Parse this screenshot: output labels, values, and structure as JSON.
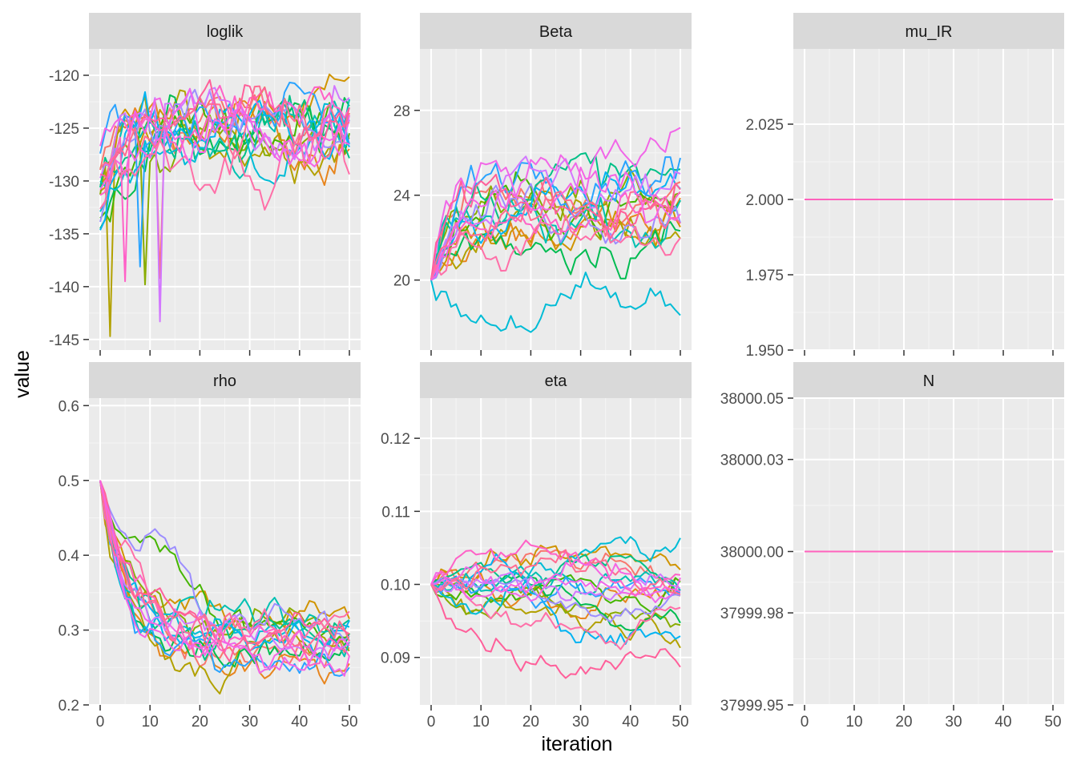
{
  "chart_data": {
    "type": "line",
    "xlabel": "iteration",
    "ylabel": "value",
    "x_ticks": [
      "0",
      "10",
      "20",
      "30",
      "40",
      "50"
    ],
    "xlim": [
      0,
      50
    ],
    "grid": true,
    "facet_scales": "free_y",
    "n_chains": 20,
    "palette": [
      "#F8766D",
      "#E7851E",
      "#D09400",
      "#B2A100",
      "#89AC00",
      "#45B500",
      "#00BC51",
      "#00C087",
      "#00C0B2",
      "#00BCD6",
      "#00B3F2",
      "#29A3FF",
      "#9C8DFF",
      "#D277FF",
      "#F166E8",
      "#FF61C7",
      "#FF6C91",
      "#FF5F9A",
      "#FF6FA8",
      "#F564E3"
    ],
    "facets": [
      {
        "id": "loglik",
        "label": "loglik",
        "ylim": [
          -146,
          -117.5
        ],
        "y_ticks": [
          -145,
          -140,
          -135,
          -130,
          -125,
          -120
        ],
        "y_tick_labels": [
          "-145",
          "-140",
          "-135",
          "-130",
          "-125",
          "-120"
        ],
        "start": -131,
        "start_spread": 4,
        "mean": -125,
        "spread": 2.3,
        "jitter": 2.2,
        "lo": -145,
        "hi": -118.5,
        "dips": [
          [
            3,
            2,
            -144.7
          ],
          [
            13,
            12,
            -143.3
          ],
          [
            4,
            9,
            -139.8
          ],
          [
            15,
            5,
            -139.5
          ],
          [
            11,
            8,
            -138.1
          ],
          [
            0,
            12,
            -139.2
          ]
        ]
      },
      {
        "id": "Beta",
        "label": "Beta",
        "ylim": [
          16.7,
          30.9
        ],
        "y_ticks": [
          20,
          24,
          28
        ],
        "y_tick_labels": [
          "20",
          "24",
          "28"
        ],
        "start": 20,
        "start_spread": 0,
        "mean": 23.6,
        "spread": 2.6,
        "jitter": 0.9,
        "lo": 17.2,
        "hi": 30.3,
        "drift_chain": 9,
        "drift_to": 18.5
      },
      {
        "id": "mu_IR",
        "label": "mu_IR",
        "ylim": [
          1.95,
          2.05
        ],
        "y_ticks": [
          1.95,
          1.975,
          2.0,
          2.025
        ],
        "y_tick_labels": [
          "1.950",
          "1.975",
          "2.000",
          "2.025"
        ],
        "constant": 2.0
      },
      {
        "id": "rho",
        "label": "rho",
        "ylim": [
          0.2,
          0.61
        ],
        "y_ticks": [
          0.2,
          0.3,
          0.4,
          0.5,
          0.6
        ],
        "y_tick_labels": [
          "0.2",
          "0.3",
          "0.4",
          "0.5",
          "0.6"
        ],
        "start": 0.5,
        "start_spread": 0,
        "mean": 0.29,
        "spread": 0.035,
        "jitter": 0.02,
        "lo": 0.215,
        "hi": 0.586,
        "decay": true
      },
      {
        "id": "eta",
        "label": "eta",
        "ylim": [
          0.0835,
          0.1255
        ],
        "y_ticks": [
          0.09,
          0.1,
          0.11,
          0.12
        ],
        "y_tick_labels": [
          "0.09",
          "0.10",
          "0.11",
          "0.12"
        ],
        "start": 0.1,
        "start_spread": 0,
        "mean": 0.1,
        "spread": 0.009,
        "jitter": 0.0015,
        "lo": 0.085,
        "hi": 0.1235,
        "walk": true
      },
      {
        "id": "N",
        "label": "N",
        "ylim": [
          37999.95,
          38000.05
        ],
        "y_ticks": [
          37999.95,
          37999.98,
          38000.0,
          38000.03,
          38000.05
        ],
        "y_tick_labels": [
          "37999.95",
          "37999.98",
          "38000.00",
          "38000.03",
          "38000.05"
        ],
        "constant": 38000.0
      }
    ]
  }
}
